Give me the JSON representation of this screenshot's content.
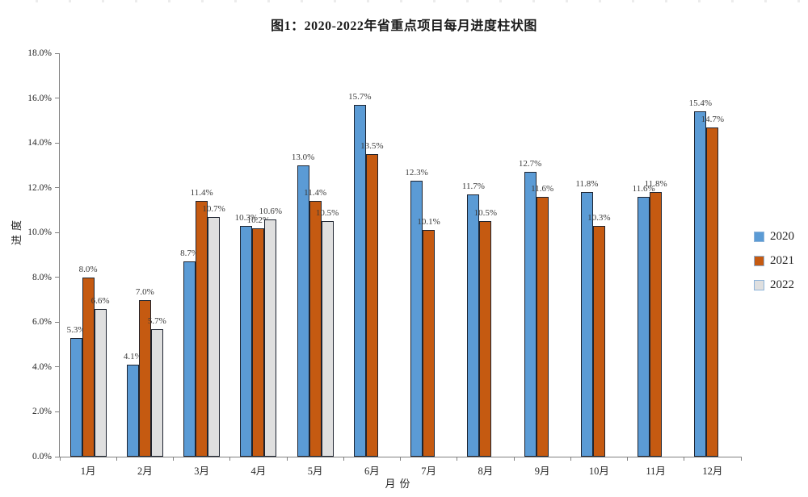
{
  "page_title": "图1：2020-2022年省重点项目每月进度柱状图",
  "chart_data": {
    "type": "bar",
    "title": "图1：2020-2022年省重点项目每月进度柱状图",
    "xlabel": "月份",
    "ylabel": "进度",
    "categories": [
      "1月",
      "2月",
      "3月",
      "4月",
      "5月",
      "6月",
      "7月",
      "8月",
      "9月",
      "10月",
      "11月",
      "12月"
    ],
    "series": [
      {
        "name": "2020",
        "color": "#5B9BD5",
        "values": [
          5.3,
          4.1,
          8.7,
          10.3,
          13.0,
          15.7,
          12.3,
          11.7,
          12.7,
          11.8,
          11.6,
          15.4
        ],
        "labels": [
          "5.3%",
          "4.1%",
          "8.7%",
          "10.3%",
          "13.0%",
          "15.7%",
          "12.3%",
          "11.7%",
          "12.7%",
          "11.8%",
          "11.6%",
          "15.4%"
        ]
      },
      {
        "name": "2021",
        "color": "#C55A11",
        "values": [
          8.0,
          7.0,
          11.4,
          10.2,
          11.4,
          13.5,
          10.1,
          10.5,
          11.6,
          10.3,
          11.8,
          14.7
        ],
        "labels": [
          "8.0%",
          "7.0%",
          "11.4%",
          "10.2%",
          "11.4%",
          "13.5%",
          "10.1%",
          "10.5%",
          "11.6%",
          "10.3%",
          "11.8%",
          "14.7%"
        ]
      },
      {
        "name": "2022",
        "color": "#DFDFDF",
        "values": [
          6.6,
          5.7,
          10.7,
          10.6,
          10.5,
          null,
          null,
          null,
          null,
          null,
          null,
          null
        ],
        "labels": [
          "6.6%",
          "5.7%",
          "10.7%",
          "10.6%",
          "10.5%",
          null,
          null,
          null,
          null,
          null,
          null,
          null
        ]
      }
    ],
    "ylim": [
      0,
      18
    ],
    "ytick_step": 2,
    "ytick_labels": [
      "0.0%",
      "2.0%",
      "4.0%",
      "6.0%",
      "8.0%",
      "10.0%",
      "12.0%",
      "14.0%",
      "16.0%",
      "18.0%"
    ],
    "grid": false,
    "legend_position": "right",
    "colors": {
      "bar_border": "#1e2430",
      "axis": "#808080",
      "legend_swatch_border": "#8fb4d9",
      "data_label": "#3a3a3a"
    }
  }
}
